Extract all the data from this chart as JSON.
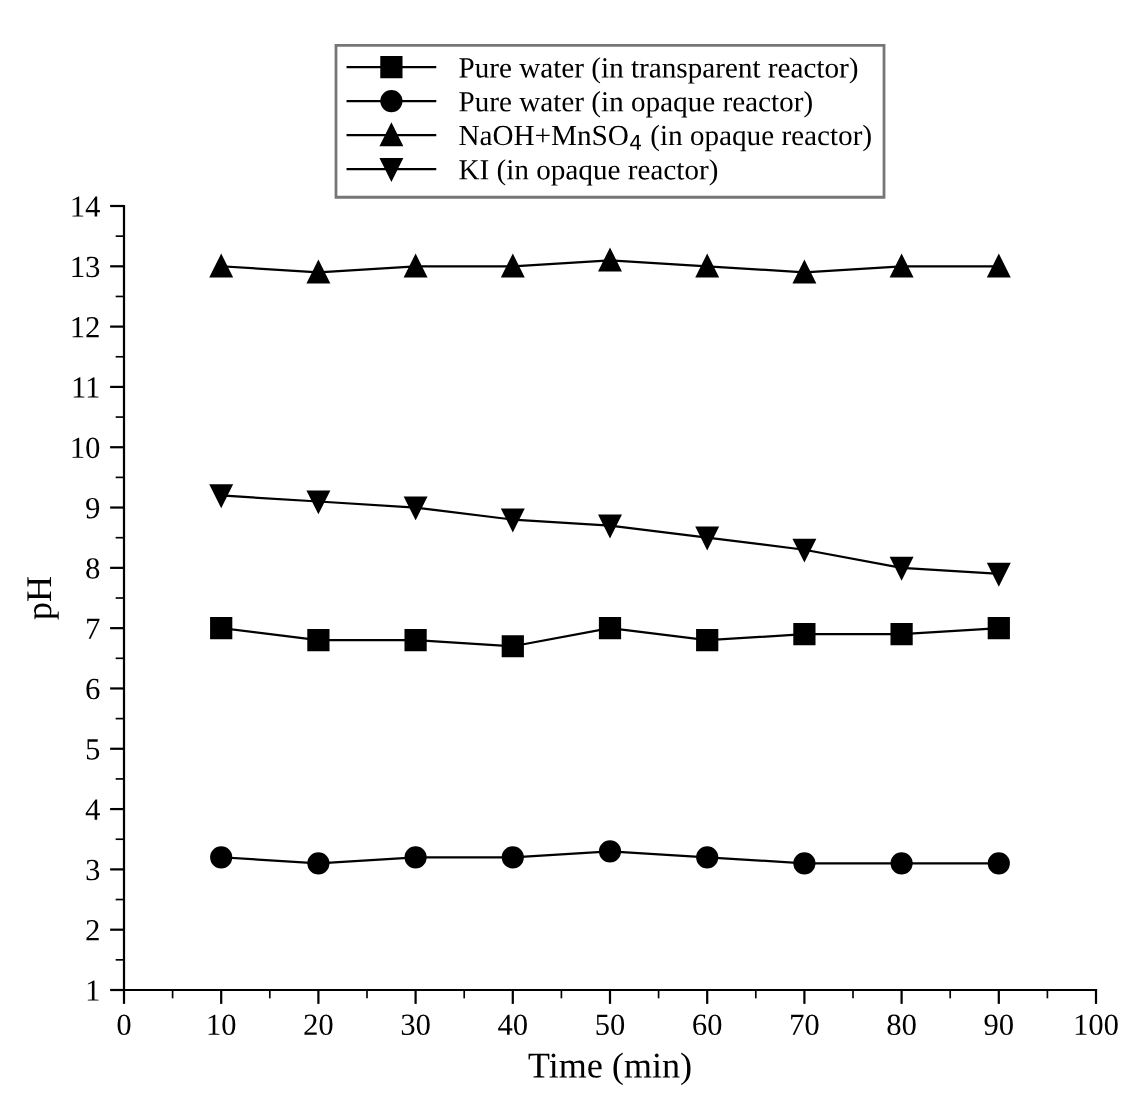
{
  "chart_data": {
    "type": "line",
    "xlabel": "Time (min)",
    "ylabel": "pH",
    "x": [
      10,
      20,
      30,
      40,
      50,
      60,
      70,
      80,
      90
    ],
    "series": [
      {
        "name": "Pure water (in transparent reactor)",
        "color": "#000000",
        "marker": "square",
        "values": [
          7.0,
          6.8,
          6.8,
          6.7,
          7.0,
          6.8,
          6.9,
          6.9,
          7.0
        ]
      },
      {
        "name": "Pure water (in opaque reactor)",
        "color": "#000000",
        "marker": "circle",
        "values": [
          3.2,
          3.1,
          3.2,
          3.2,
          3.3,
          3.2,
          3.1,
          3.1,
          3.1
        ]
      },
      {
        "name": "NaOH+MnSO$_{4}$ (in opaque reactor)",
        "color": "#000000",
        "marker": "triangle",
        "values": [
          13.0,
          12.9,
          13.0,
          13.0,
          13.1,
          13.0,
          12.9,
          13.0,
          13.0
        ]
      },
      {
        "name": "KI (in opaque reactor)",
        "color": "#000000",
        "marker": "triangle_down",
        "values": [
          9.2,
          9.1,
          9.0,
          8.8,
          8.7,
          8.5,
          8.3,
          8.0,
          7.9
        ]
      }
    ],
    "xlim": [
      0,
      100
    ],
    "xticks": [
      0,
      10,
      20,
      30,
      40,
      50,
      60,
      70,
      80,
      90,
      100
    ],
    "ylim": [
      1,
      14
    ],
    "yticks": [
      1,
      2,
      3,
      4,
      5,
      6,
      7,
      8,
      9,
      10,
      11,
      12,
      13,
      14
    ],
    "grid": false,
    "legend": "top",
    "line_style": "solid"
  }
}
